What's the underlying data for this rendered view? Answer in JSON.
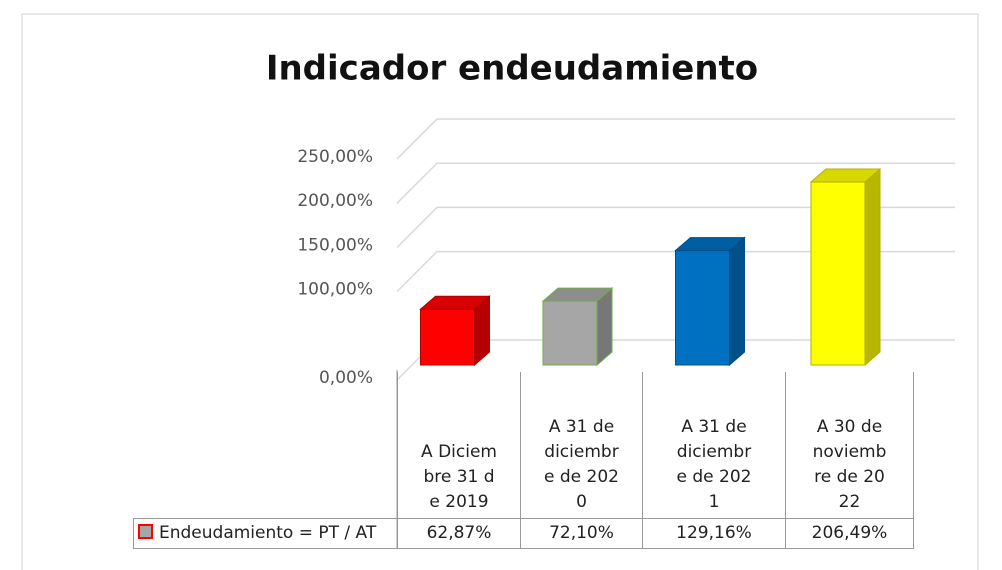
{
  "chart_data": {
    "type": "bar",
    "title": "Indicador endeudamiento",
    "categories": [
      "A Diciembre 31 de 2019",
      "A 31 de diciembre de 2020",
      "A 31 de diciembre de 2021",
      "A 30 de noviembre de 2022"
    ],
    "series": [
      {
        "name": "Endeudamiento = PT / AT",
        "colors": [
          "#ff0000",
          "#a6a6a6",
          "#0070c0",
          "#ffff00"
        ],
        "values": [
          62.87,
          72.1,
          129.16,
          206.49
        ],
        "value_labels": [
          "62,87%",
          "72,10%",
          "129,16%",
          "206,49%"
        ]
      }
    ],
    "ylim": [
      0,
      250
    ],
    "yticks": [
      {
        "value": 0,
        "label": "0,00%"
      },
      {
        "value": 100,
        "label": "100,00%"
      },
      {
        "value": 150,
        "label": "150,00%"
      },
      {
        "value": 200,
        "label": "200,00%"
      },
      {
        "value": 250,
        "label": "250,00%"
      }
    ],
    "grid": true
  }
}
